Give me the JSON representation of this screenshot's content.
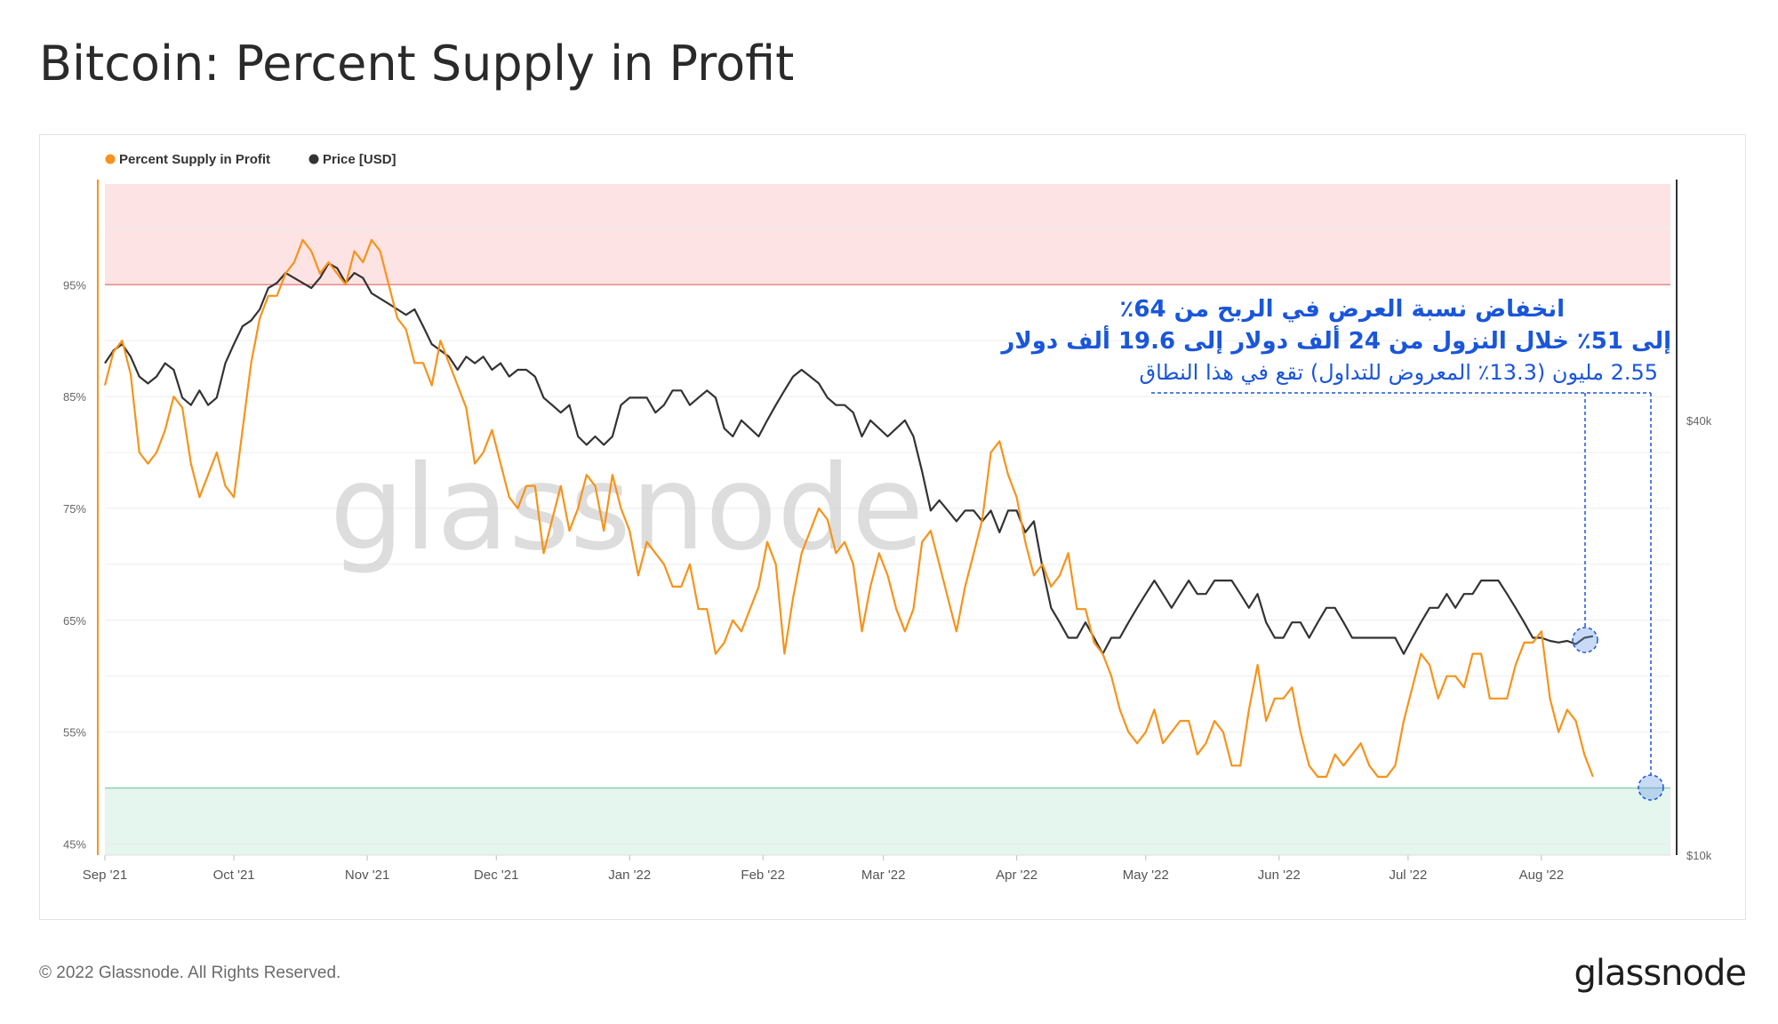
{
  "header": {
    "title": "Bitcoin: Percent Supply in Profit"
  },
  "footer": {
    "copyright": "© 2022 Glassnode. All Rights Reserved.",
    "logo": "glassnode"
  },
  "watermark": "glassnode",
  "colors": {
    "supply": "#f7931a",
    "price": "#333333",
    "annotation": "#1a56db",
    "profit_band": "#fde3e3",
    "loss_band": "#e4f6ee"
  },
  "annotation": {
    "line1": "انخفاض نسبة العرض في الربح من 64٪",
    "line2": "إلى 51٪ خلال النزول من 24 ألف دولار إلى 19.6 ألف دولار",
    "line3": "2.55 مليون (13.3٪ المعروض للتداول) تقع في هذا النطاق"
  },
  "chart_data": {
    "type": "line",
    "legend": [
      {
        "name": "Percent Supply in Profit",
        "color": "#f7931a"
      },
      {
        "name": "Price [USD]",
        "color": "#333333"
      }
    ],
    "x_ticks": [
      "Sep '21",
      "Oct '21",
      "Nov '21",
      "Dec '21",
      "Jan '22",
      "Feb '22",
      "Mar '22",
      "Apr '22",
      "May '22",
      "Jun '22",
      "Jul '22",
      "Aug '22"
    ],
    "y_left": {
      "ticks": [
        "95%",
        "85%",
        "75%",
        "65%",
        "55%",
        "45%"
      ],
      "tick_values": [
        95,
        85,
        75,
        65,
        55,
        45
      ],
      "range": [
        44,
        104
      ]
    },
    "y_right": {
      "ticks": [
        "$40k",
        "$10k"
      ],
      "tick_values": [
        40000,
        10000
      ],
      "scale": "log",
      "range": [
        10000,
        85000
      ]
    },
    "bands": [
      {
        "from": 95,
        "to": 104,
        "label": "profit"
      },
      {
        "from": 44,
        "to": 50,
        "label": "loss"
      }
    ],
    "series": [
      {
        "name": "Percent Supply in Profit",
        "axis": "left",
        "start": "2021-09-01",
        "step_days": 2,
        "values": [
          86,
          89,
          90,
          87,
          80,
          79,
          80,
          82,
          85,
          84,
          79,
          76,
          78,
          80,
          77,
          76,
          82,
          88,
          92,
          94,
          94,
          96,
          97,
          99,
          98,
          96,
          97,
          96,
          95,
          98,
          97,
          99,
          98,
          95,
          92,
          91,
          88,
          88,
          86,
          90,
          88,
          86,
          84,
          79,
          80,
          82,
          79,
          76,
          75,
          77,
          77,
          71,
          74,
          77,
          73,
          75,
          78,
          77,
          73,
          78,
          75,
          73,
          69,
          72,
          71,
          70,
          68,
          68,
          70,
          66,
          66,
          62,
          63,
          65,
          64,
          66,
          68,
          72,
          70,
          62,
          67,
          71,
          73,
          75,
          74,
          71,
          72,
          70,
          64,
          68,
          71,
          69,
          66,
          64,
          66,
          72,
          73,
          70,
          67,
          64,
          68,
          71,
          74,
          80,
          81,
          78,
          76,
          72,
          69,
          70,
          68,
          69,
          71,
          66,
          66,
          63,
          62,
          60,
          57,
          55,
          54,
          55,
          57,
          54,
          55,
          56,
          56,
          53,
          54,
          56,
          55,
          52,
          52,
          57,
          61,
          56,
          58,
          58,
          59,
          55,
          52,
          51,
          51,
          53,
          52,
          53,
          54,
          52,
          51,
          51,
          52,
          56,
          59,
          62,
          61,
          58,
          60,
          60,
          59,
          62,
          62,
          58,
          58,
          58,
          61,
          63,
          63,
          64,
          58,
          55,
          57,
          56,
          53,
          51
        ]
      },
      {
        "name": "Price [USD]",
        "axis": "right",
        "start": "2021-09-01",
        "step_days": 2,
        "values": [
          48000,
          50000,
          51000,
          49000,
          46000,
          45000,
          46000,
          48000,
          47000,
          43000,
          42000,
          44000,
          42000,
          43000,
          48000,
          51000,
          54000,
          55000,
          57000,
          61000,
          62000,
          64000,
          63000,
          62000,
          61000,
          63000,
          66000,
          65000,
          62000,
          64000,
          63000,
          60000,
          59000,
          58000,
          57000,
          56000,
          57000,
          54000,
          51000,
          50000,
          49000,
          47000,
          49000,
          48000,
          49000,
          47000,
          48000,
          46000,
          47000,
          47000,
          46000,
          43000,
          42000,
          41000,
          42000,
          38000,
          37000,
          38000,
          37000,
          38000,
          42000,
          43000,
          43000,
          43000,
          41000,
          42000,
          44000,
          44000,
          42000,
          43000,
          44000,
          43000,
          39000,
          38000,
          40000,
          39000,
          38000,
          40000,
          42000,
          44000,
          46000,
          47000,
          46000,
          45000,
          43000,
          42000,
          42000,
          41000,
          38000,
          40000,
          39000,
          38000,
          39000,
          40000,
          38000,
          34000,
          30000,
          31000,
          30000,
          29000,
          30000,
          30000,
          29000,
          30000,
          28000,
          30000,
          30000,
          28000,
          29000,
          25000,
          22000,
          21000,
          20000,
          20000,
          21000,
          20000,
          19000,
          20000,
          20000,
          21000,
          22000,
          23000,
          24000,
          23000,
          22000,
          23000,
          24000,
          23000,
          23000,
          24000,
          24000,
          24000,
          23000,
          22000,
          23000,
          21000,
          20000,
          20000,
          21000,
          21000,
          20000,
          21000,
          22000,
          22000,
          21000,
          20000,
          20000,
          20000,
          20000,
          20000,
          20000,
          19000,
          20000,
          21000,
          22000,
          22000,
          23000,
          22000,
          23000,
          23000,
          24000,
          24000,
          24000,
          23000,
          22000,
          21000,
          20000,
          20000,
          19800,
          19700,
          19800,
          19600,
          20000,
          20100
        ]
      }
    ],
    "threshold_lines": [
      95,
      50
    ]
  }
}
